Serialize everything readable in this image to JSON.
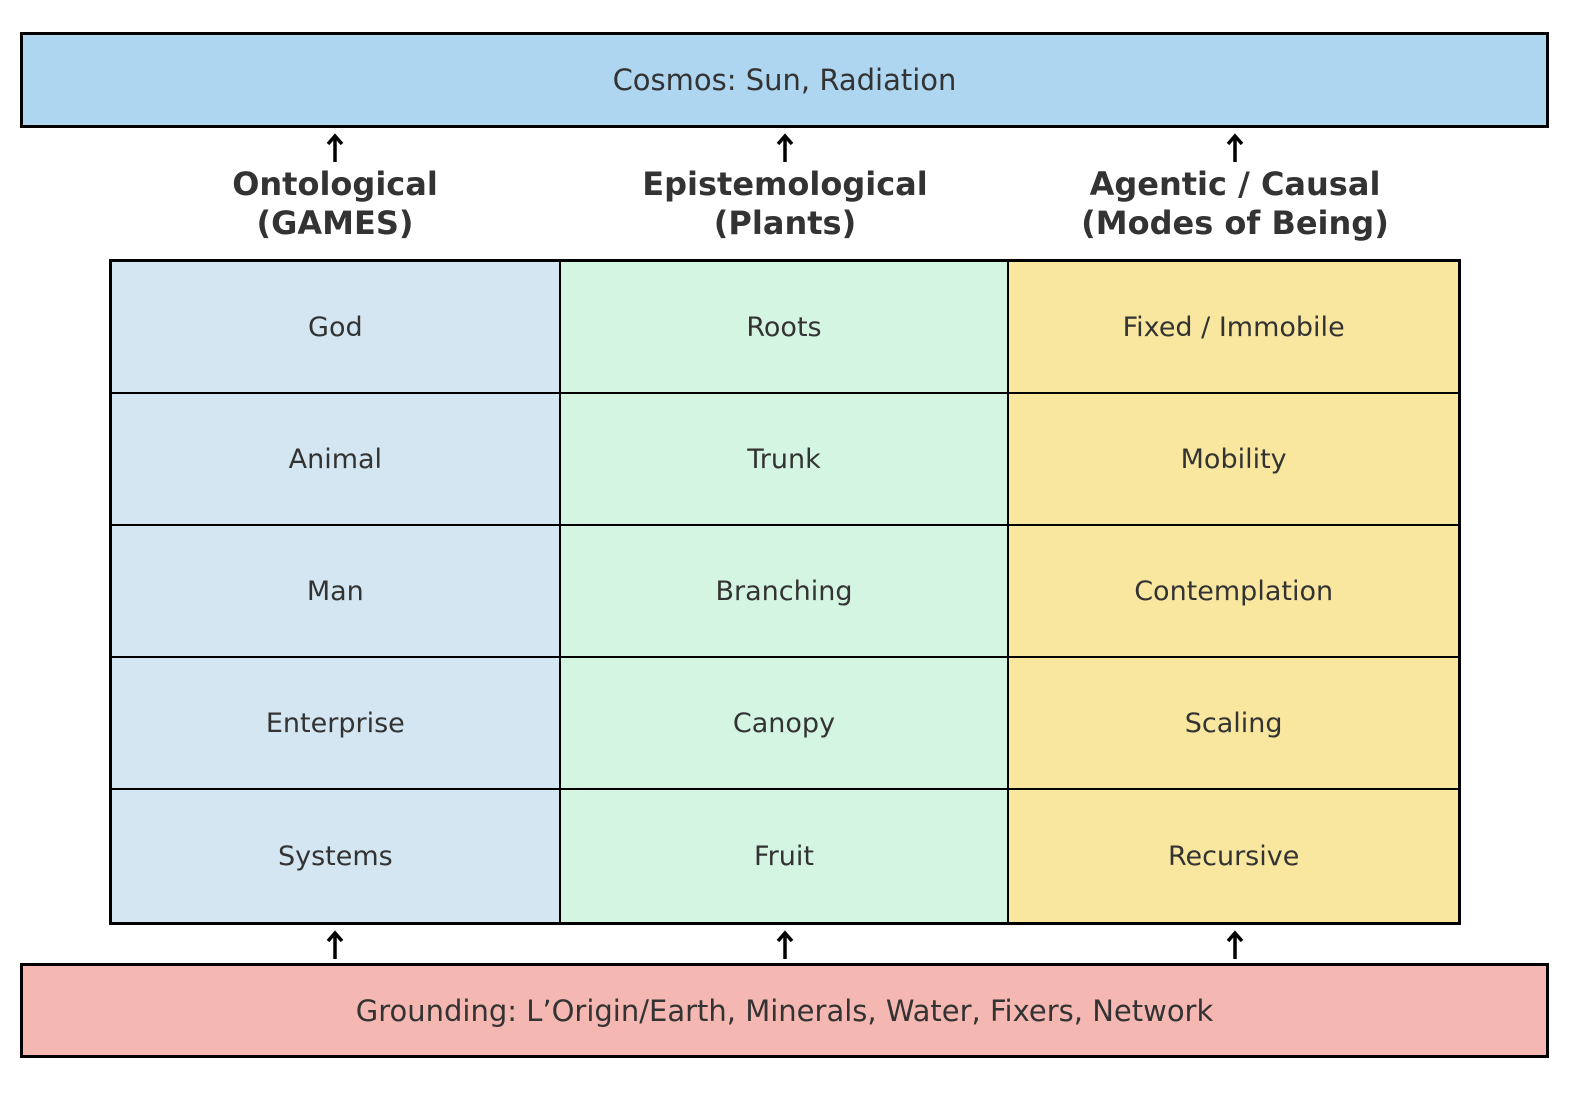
{
  "top_band": {
    "label": "Cosmos: Sun, Radiation",
    "color": "#AED6F1"
  },
  "bottom_band": {
    "label": "Grounding: L’Origin/Earth, Minerals, Water, Fixers, Network",
    "color": "#F5B7B1"
  },
  "columns": [
    {
      "title": "Ontological",
      "subtitle": "(GAMES)",
      "color": "#D4E6F1",
      "cells": [
        "God",
        "Animal",
        "Man",
        "Enterprise",
        "Systems"
      ]
    },
    {
      "title": "Epistemological",
      "subtitle": "(Plants)",
      "color": "#D5F5E3",
      "cells": [
        "Roots",
        "Trunk",
        "Branching",
        "Canopy",
        "Fruit"
      ]
    },
    {
      "title": "Agentic / Causal",
      "subtitle": "(Modes of Being)",
      "color": "#F9E79F",
      "cells": [
        "Fixed / Immobile",
        "Mobility",
        "Contemplation",
        "Scaling",
        "Recursive"
      ]
    }
  ],
  "arrow_icon": "arrow-up-icon",
  "arrow_color": "#000000"
}
